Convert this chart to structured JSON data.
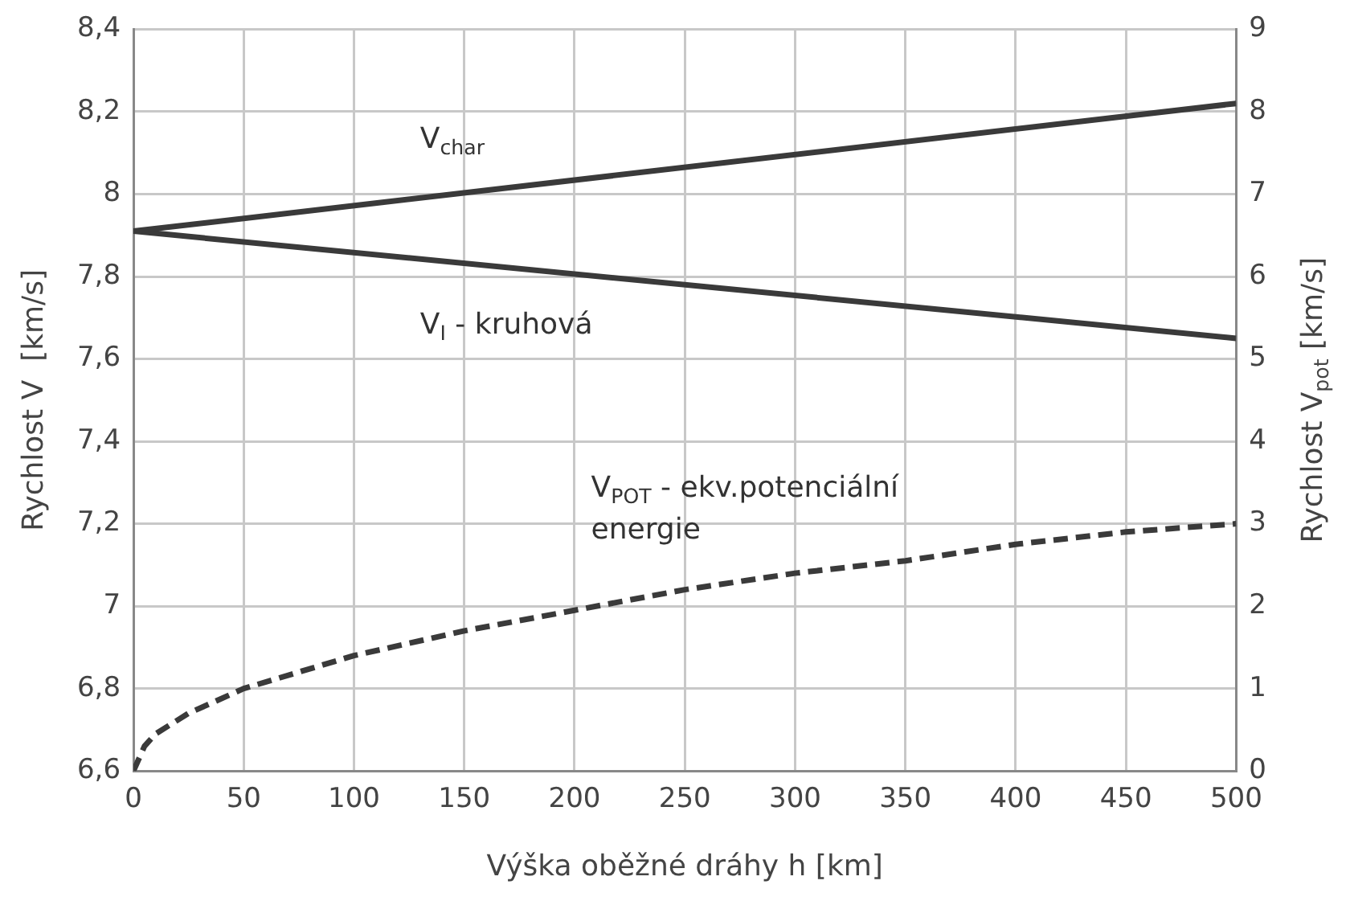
{
  "chart_data": {
    "type": "line",
    "xlabel": "Výška oběžné dráhy h [km]",
    "ylabel": "Rychlost V  [km/s]",
    "y2label": "Rychlost V$_{pot}$ [km/s]",
    "xlim": [
      0,
      500
    ],
    "xticks": [
      0,
      50,
      100,
      150,
      200,
      250,
      300,
      350,
      400,
      450,
      500
    ],
    "ylim": [
      6.6,
      8.4
    ],
    "yticks": [
      {
        "value": 6.6,
        "label": "6,6"
      },
      {
        "value": 6.8,
        "label": "6,8"
      },
      7,
      {
        "value": 7.2,
        "label": "7,2"
      },
      {
        "value": 7.4,
        "label": "7,4"
      },
      {
        "value": 7.6,
        "label": "7,6"
      },
      {
        "value": 7.8,
        "label": "7,8"
      },
      8,
      {
        "value": 8.2,
        "label": "8,2"
      },
      {
        "value": 8.4,
        "label": "8,4"
      }
    ],
    "y2lim": [
      0,
      9
    ],
    "y2ticks": [
      0,
      1,
      2,
      3,
      4,
      5,
      6,
      7,
      8,
      9
    ],
    "grid": true,
    "legend": false,
    "marker": "none",
    "series": [
      {
        "color": "#3a3a3a",
        "x": [
          0,
          500
        ],
        "values": [
          7.91,
          8.22
        ],
        "line_style": "solid"
      },
      {
        "color": "#3a3a3a",
        "x": [
          0,
          500
        ],
        "values": [
          7.91,
          7.65
        ],
        "line_style": "solid"
      },
      {
        "color": "#3a3a3a",
        "axis": "y2",
        "line_style": "dashed",
        "x": [
          0,
          5,
          10,
          25,
          50,
          100,
          150,
          200,
          250,
          300,
          350,
          400,
          450,
          500
        ],
        "values": [
          0,
          0.3,
          0.45,
          0.7,
          1,
          1.4,
          1.7,
          1.95,
          2.2,
          2.4,
          2.55,
          2.75,
          2.9,
          3
        ]
      }
    ],
    "annotations": [
      "V$_{char}$",
      "V$_{I}$ - kruhová",
      "V$_{POT}$ - ekv.potenciální\nenergie"
    ]
  }
}
